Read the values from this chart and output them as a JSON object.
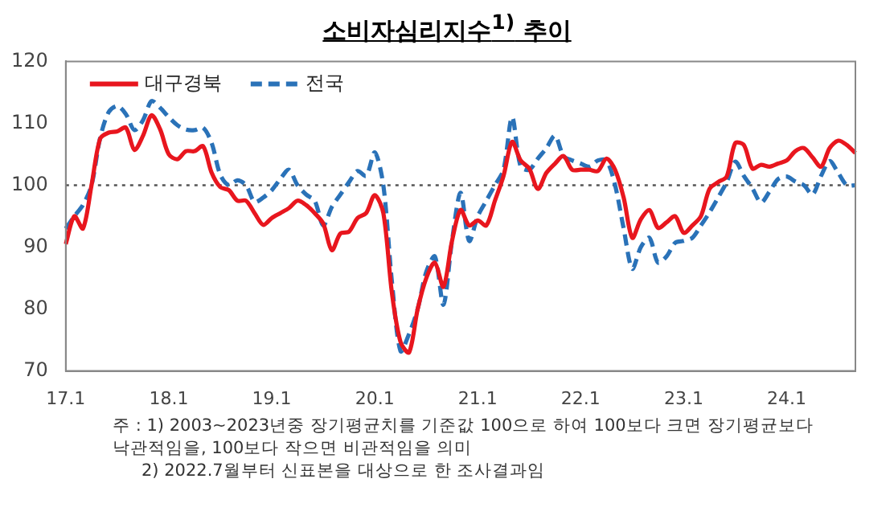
{
  "chart_data": {
    "type": "line",
    "title": "소비자심리지수$^{1)}$ 추이",
    "categories": [
      "17.1",
      null,
      null,
      null,
      null,
      null,
      null,
      null,
      null,
      null,
      null,
      null,
      "18.1",
      null,
      null,
      null,
      null,
      null,
      null,
      null,
      null,
      null,
      null,
      null,
      "19.1",
      null,
      null,
      null,
      null,
      null,
      null,
      null,
      null,
      null,
      null,
      null,
      "20.1",
      null,
      null,
      null,
      null,
      null,
      null,
      null,
      null,
      null,
      null,
      null,
      "21.1",
      null,
      null,
      null,
      null,
      null,
      null,
      null,
      null,
      null,
      null,
      null,
      "22.1",
      null,
      null,
      null,
      null,
      null,
      null,
      null,
      null,
      null,
      null,
      null,
      "23.1",
      null,
      null,
      null,
      null,
      null,
      null,
      null,
      null,
      null,
      null,
      null,
      "24.1",
      null,
      null,
      null,
      null,
      null,
      null,
      null,
      null
    ],
    "series": [
      {
        "name": "대구경북",
        "color": "#e8161e",
        "line_style": "solid",
        "values": [
          90.5,
          95,
          93,
          100,
          107.5,
          108.5,
          108.7,
          109.3,
          105.7,
          108,
          111.3,
          109,
          105,
          104.2,
          105.5,
          105.5,
          106.3,
          102,
          99.7,
          99.2,
          97.5,
          97.5,
          95.5,
          93.6,
          94.7,
          95.5,
          96.3,
          97.5,
          96.8,
          95.5,
          93.8,
          89.5,
          92.2,
          92.5,
          94.7,
          95.5,
          98.4,
          95.5,
          82.6,
          74.7,
          73,
          80,
          85,
          87.5,
          83.6,
          91,
          96,
          93.5,
          94.3,
          93.5,
          97.5,
          101.5,
          107,
          104,
          102.7,
          99.4,
          102,
          103.5,
          104.7,
          102.5,
          102.5,
          102.5,
          102.3,
          104.3,
          102.5,
          98,
          91.5,
          94.5,
          96,
          93.1,
          94,
          95,
          92.3,
          93.5,
          95,
          99.4,
          100.5,
          101.4,
          106.8,
          106.5,
          102.7,
          103.3,
          103,
          103.5,
          104,
          105.5,
          106,
          104.5,
          103,
          106,
          107.2,
          106.5,
          105.2
        ]
      },
      {
        "name": "전국",
        "color": "#2a72b8",
        "line_style": "dashed",
        "values": [
          93,
          95,
          96.8,
          100,
          107.6,
          111.8,
          112.8,
          111.5,
          108.9,
          110.5,
          113.6,
          112.5,
          111,
          109.7,
          109,
          108.9,
          109.3,
          106.8,
          101.7,
          100,
          100.8,
          100,
          97.3,
          98,
          99.2,
          101,
          102.5,
          100,
          98.5,
          97.5,
          93.5,
          96.5,
          98.5,
          100.5,
          102.3,
          101.5,
          105.3,
          100,
          84.4,
          73.2,
          76,
          80,
          86,
          88.5,
          80.7,
          91,
          98.8,
          91,
          95,
          97.5,
          100,
          102.5,
          111,
          103,
          102.5,
          104.3,
          106,
          108,
          104.7,
          104,
          103.5,
          103,
          104,
          104,
          100,
          93,
          86.5,
          90,
          91.5,
          87.5,
          88.5,
          90.7,
          91,
          91.5,
          93.5,
          95.6,
          98,
          100.5,
          103.8,
          101.5,
          99.5,
          97.2,
          99,
          101,
          101.4,
          100.6,
          100,
          98.5,
          101.5,
          103.9,
          102,
          100,
          100
        ]
      }
    ],
    "ylim": [
      70,
      120
    ],
    "yticks": [
      70,
      80,
      90,
      100,
      110,
      120
    ],
    "grid": false,
    "legend": "top left",
    "ref_lines": [
      {
        "axis": "y",
        "value": 100,
        "color": "#555555",
        "line_style": "dotted"
      }
    ],
    "annotations": [
      "주 : 1) 2003~2023년중 장기평균치를 기준값 100으로 하여 100보다 크면 장기평균보다 낙관적임을, 100보다 작으면 비관적임을 의미",
      "2) 2022.7월부터 신표본을 대상으로 한 조사결과임"
    ]
  }
}
